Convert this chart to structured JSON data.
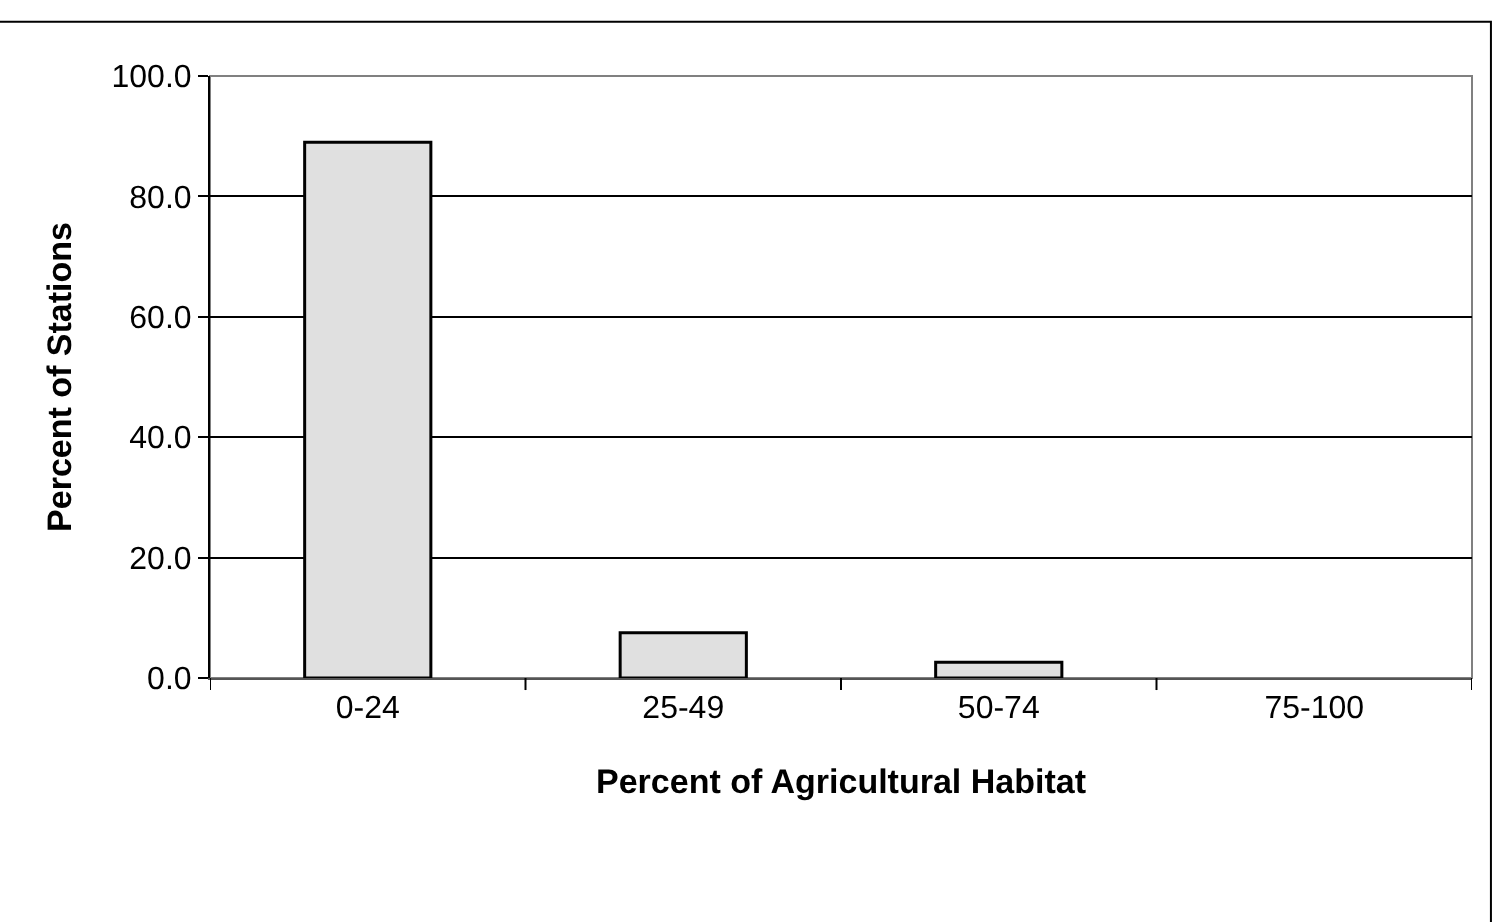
{
  "chart_data": {
    "type": "bar",
    "xlabel": "Percent of Agricultural Habitat",
    "ylabel": "Percent of Stations",
    "categories": [
      "0-24",
      "25-49",
      "50-74",
      "75-100"
    ],
    "values": [
      89,
      7.5,
      2.6,
      0
    ],
    "color": "#e0e0e0",
    "ylim": [
      0,
      100
    ],
    "yticks": [
      {
        "value": 0,
        "label": "0.0"
      },
      {
        "value": 20,
        "label": "20.0"
      },
      {
        "value": 40,
        "label": "40.0"
      },
      {
        "value": 60,
        "label": "60.0"
      },
      {
        "value": 80,
        "label": "80.0"
      },
      {
        "value": 100,
        "label": "100.0"
      }
    ],
    "grid": "y"
  }
}
